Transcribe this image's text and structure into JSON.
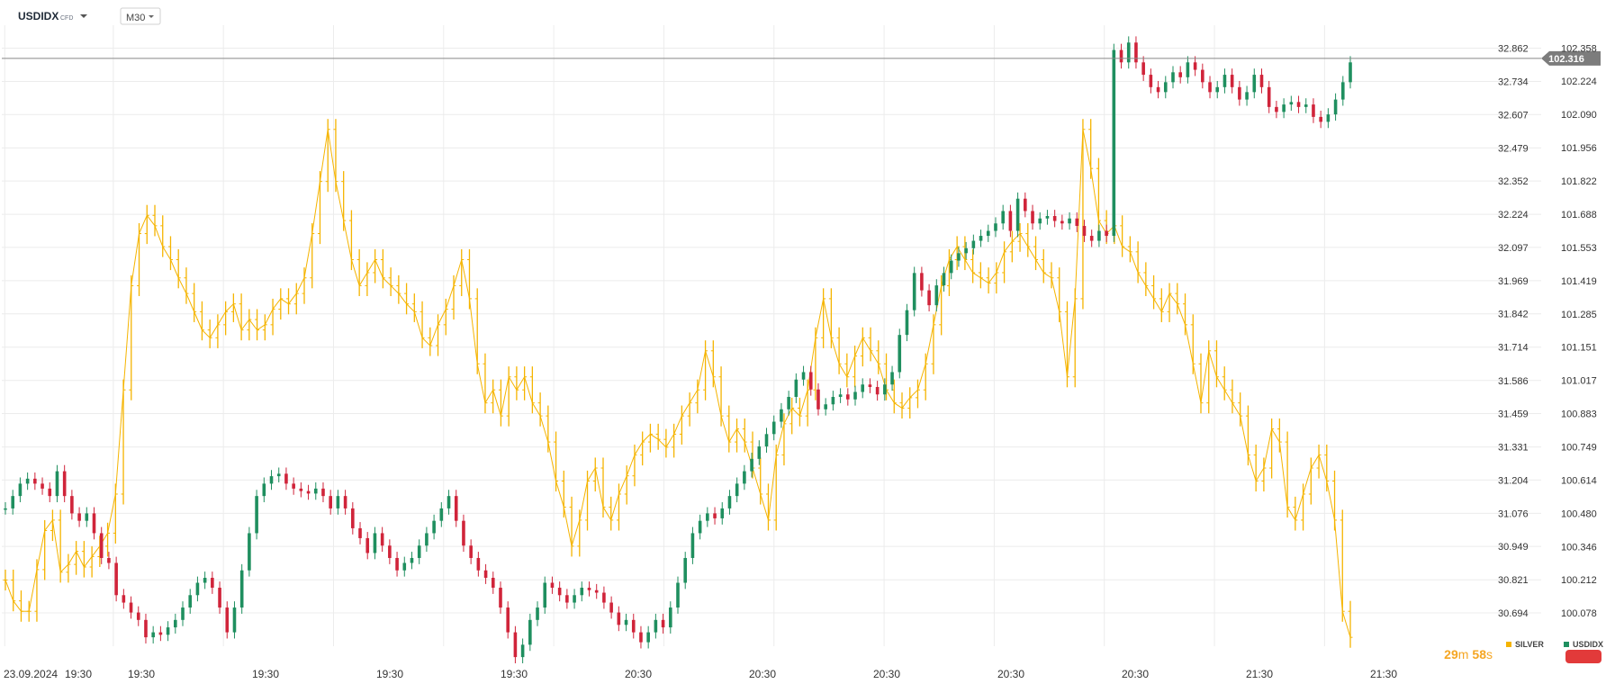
{
  "header": {
    "symbol": "USDIDX",
    "instrument_type": "CFD",
    "dropdown_icon": "caret-down-icon",
    "timeframe": "M30"
  },
  "timer": {
    "minutes": "29",
    "minutes_unit": "m",
    "seconds": "58",
    "seconds_unit": "s"
  },
  "colors": {
    "silver": "#f5b400",
    "up": "#1f8f5f",
    "down": "#d0243a",
    "grid": "#ececec",
    "price_line": "#888888",
    "price_tag": "#7c7c7c",
    "timer": "#f5a623"
  },
  "chart_data": {
    "type": "line",
    "x_tick_labels": [
      "23.09.2024",
      "19:30",
      "19:30",
      "19:30",
      "19:30",
      "19:30",
      "20:30",
      "20:30",
      "20:30",
      "20:30",
      "20:30",
      "21:30",
      "21:30"
    ],
    "y_axis_silver": {
      "ticks": [
        "32.862",
        "32.734",
        "32.607",
        "32.479",
        "32.352",
        "32.224",
        "32.097",
        "31.969",
        "31.842",
        "31.714",
        "31.586",
        "31.459",
        "31.331",
        "31.204",
        "31.076",
        "30.949",
        "30.821",
        "30.694"
      ],
      "range": [
        30.566,
        32.95
      ]
    },
    "y_axis_usdidx": {
      "ticks": [
        "102.358",
        "102.224",
        "102.090",
        "101.956",
        "101.822",
        "101.688",
        "101.553",
        "101.419",
        "101.285",
        "101.151",
        "101.017",
        "100.883",
        "100.749",
        "100.614",
        "100.480",
        "100.346",
        "100.212",
        "100.078"
      ],
      "range": [
        99.944,
        102.45
      ],
      "current_price": "102.316"
    },
    "legend": [
      "SILVER",
      "USDIDX"
    ],
    "series": [
      {
        "name": "SILVER",
        "style": "line-bars",
        "values": [
          30.82,
          30.74,
          30.7,
          30.7,
          30.86,
          31.01,
          31.05,
          30.85,
          30.88,
          30.93,
          30.87,
          30.91,
          30.95,
          31.0,
          31.15,
          31.55,
          31.95,
          32.15,
          32.22,
          32.18,
          32.1,
          32.05,
          31.98,
          31.92,
          31.85,
          31.78,
          31.75,
          31.8,
          31.85,
          31.88,
          31.78,
          31.82,
          31.78,
          31.8,
          31.86,
          31.9,
          31.88,
          31.92,
          31.98,
          32.15,
          32.35,
          32.55,
          32.35,
          32.2,
          32.05,
          31.95,
          32.0,
          32.05,
          31.98,
          31.95,
          31.92,
          31.88,
          31.85,
          31.75,
          31.72,
          31.8,
          31.86,
          31.95,
          32.05,
          31.9,
          31.65,
          31.5,
          31.55,
          31.45,
          31.6,
          31.55,
          31.6,
          31.5,
          31.45,
          31.35,
          31.2,
          31.1,
          30.95,
          31.05,
          31.2,
          31.25,
          31.1,
          31.05,
          31.15,
          31.22,
          31.3,
          31.35,
          31.38,
          31.36,
          31.33,
          31.38,
          31.45,
          31.5,
          31.55,
          31.7,
          31.6,
          31.45,
          31.35,
          31.4,
          31.35,
          31.25,
          31.15,
          31.05,
          31.3,
          31.42,
          31.48,
          31.45,
          31.55,
          31.75,
          31.9,
          31.75,
          31.65,
          31.6,
          31.68,
          31.75,
          31.7,
          31.65,
          31.55,
          31.5,
          31.48,
          31.52,
          31.55,
          31.65,
          31.8,
          31.95,
          32.05,
          32.1,
          32.05,
          32.0,
          31.98,
          31.96,
          32.0,
          32.08,
          32.12,
          32.15,
          32.1,
          32.05,
          32.0,
          31.98,
          31.85,
          31.6,
          31.9,
          32.55,
          32.4,
          32.2,
          32.15,
          32.18,
          32.1,
          32.08,
          32.0,
          31.95,
          31.9,
          31.85,
          31.92,
          31.88,
          31.8,
          31.65,
          31.5,
          31.7,
          31.6,
          31.55,
          31.5,
          31.45,
          31.3,
          31.2,
          31.25,
          31.4,
          31.35,
          31.1,
          31.05,
          31.15,
          31.25,
          31.3,
          31.2,
          31.05,
          30.7,
          30.6
        ]
      },
      {
        "name": "USDIDX",
        "style": "candlestick",
        "values": [
          100.5,
          100.55,
          100.6,
          100.62,
          100.6,
          100.58,
          100.55,
          100.65,
          100.55,
          100.48,
          100.45,
          100.48,
          100.4,
          100.3,
          100.28,
          100.15,
          100.12,
          100.08,
          100.05,
          99.98,
          100.0,
          99.99,
          100.02,
          100.05,
          100.1,
          100.15,
          100.2,
          100.22,
          100.18,
          100.1,
          100.0,
          100.1,
          100.25,
          100.4,
          100.55,
          100.6,
          100.63,
          100.64,
          100.6,
          100.58,
          100.57,
          100.56,
          100.58,
          100.55,
          100.5,
          100.55,
          100.5,
          100.42,
          100.38,
          100.32,
          100.4,
          100.35,
          100.3,
          100.25,
          100.28,
          100.3,
          100.35,
          100.4,
          100.45,
          100.5,
          100.55,
          100.45,
          100.35,
          100.3,
          100.25,
          100.22,
          100.18,
          100.1,
          100.0,
          99.9,
          99.95,
          100.05,
          100.1,
          100.2,
          100.18,
          100.15,
          100.12,
          100.15,
          100.18,
          100.17,
          100.16,
          100.12,
          100.08,
          100.03,
          100.05,
          100.0,
          99.96,
          100.0,
          100.05,
          100.02,
          100.1,
          100.2,
          100.3,
          100.4,
          100.45,
          100.48,
          100.46,
          100.5,
          100.55,
          100.6,
          100.65,
          100.7,
          100.75,
          100.8,
          100.85,
          100.9,
          100.95,
          101.02,
          101.05,
          100.98,
          100.9,
          100.92,
          100.95,
          100.96,
          100.94,
          100.97,
          101.0,
          100.99,
          100.96,
          101.0,
          101.05,
          101.2,
          101.3,
          101.45,
          101.38,
          101.32,
          101.4,
          101.45,
          101.5,
          101.53,
          101.55,
          101.58,
          101.6,
          101.62,
          101.65,
          101.7,
          101.62,
          101.75,
          101.7,
          101.65,
          101.67,
          101.68,
          101.66,
          101.65,
          101.67,
          101.64,
          101.6,
          101.58,
          101.62,
          101.6,
          102.35,
          102.3,
          102.38,
          102.3,
          102.25,
          102.2,
          102.18,
          102.22,
          102.26,
          102.24,
          102.3,
          102.27,
          102.22,
          102.18,
          102.2,
          102.25,
          102.2,
          102.15,
          102.18,
          102.25,
          102.2,
          102.12,
          102.1,
          102.13,
          102.14,
          102.12,
          102.13,
          102.08,
          102.06,
          102.09,
          102.15,
          102.22,
          102.3
        ]
      }
    ]
  }
}
